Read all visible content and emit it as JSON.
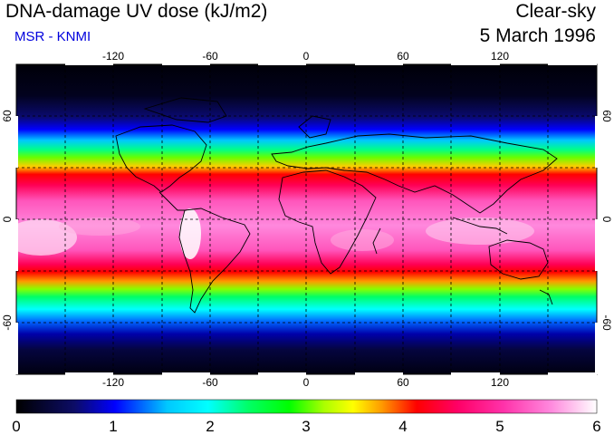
{
  "header": {
    "title": "DNA-damage UV dose (kJ/m2)",
    "subtitle": "MSR - KNMI",
    "condition": "Clear-sky",
    "date": "5 March 1996"
  },
  "colors": {
    "subtitle": "#0000dd",
    "scale": [
      "#000000",
      "#0c0c66",
      "#0000ff",
      "#00c8ff",
      "#00ffff",
      "#00ff66",
      "#00ff00",
      "#aaff00",
      "#ffff00",
      "#ff9900",
      "#ff0000",
      "#ff0066",
      "#ff33aa",
      "#ff88dd",
      "#ffffff"
    ]
  },
  "map": {
    "lon_ticks": [
      "-120",
      "-60",
      "0",
      "60",
      "120"
    ],
    "lat_ticks": [
      "60",
      "0",
      "-60"
    ]
  },
  "colorbar": {
    "labels": [
      "0",
      "1",
      "2",
      "3",
      "4",
      "5",
      "6"
    ]
  }
}
